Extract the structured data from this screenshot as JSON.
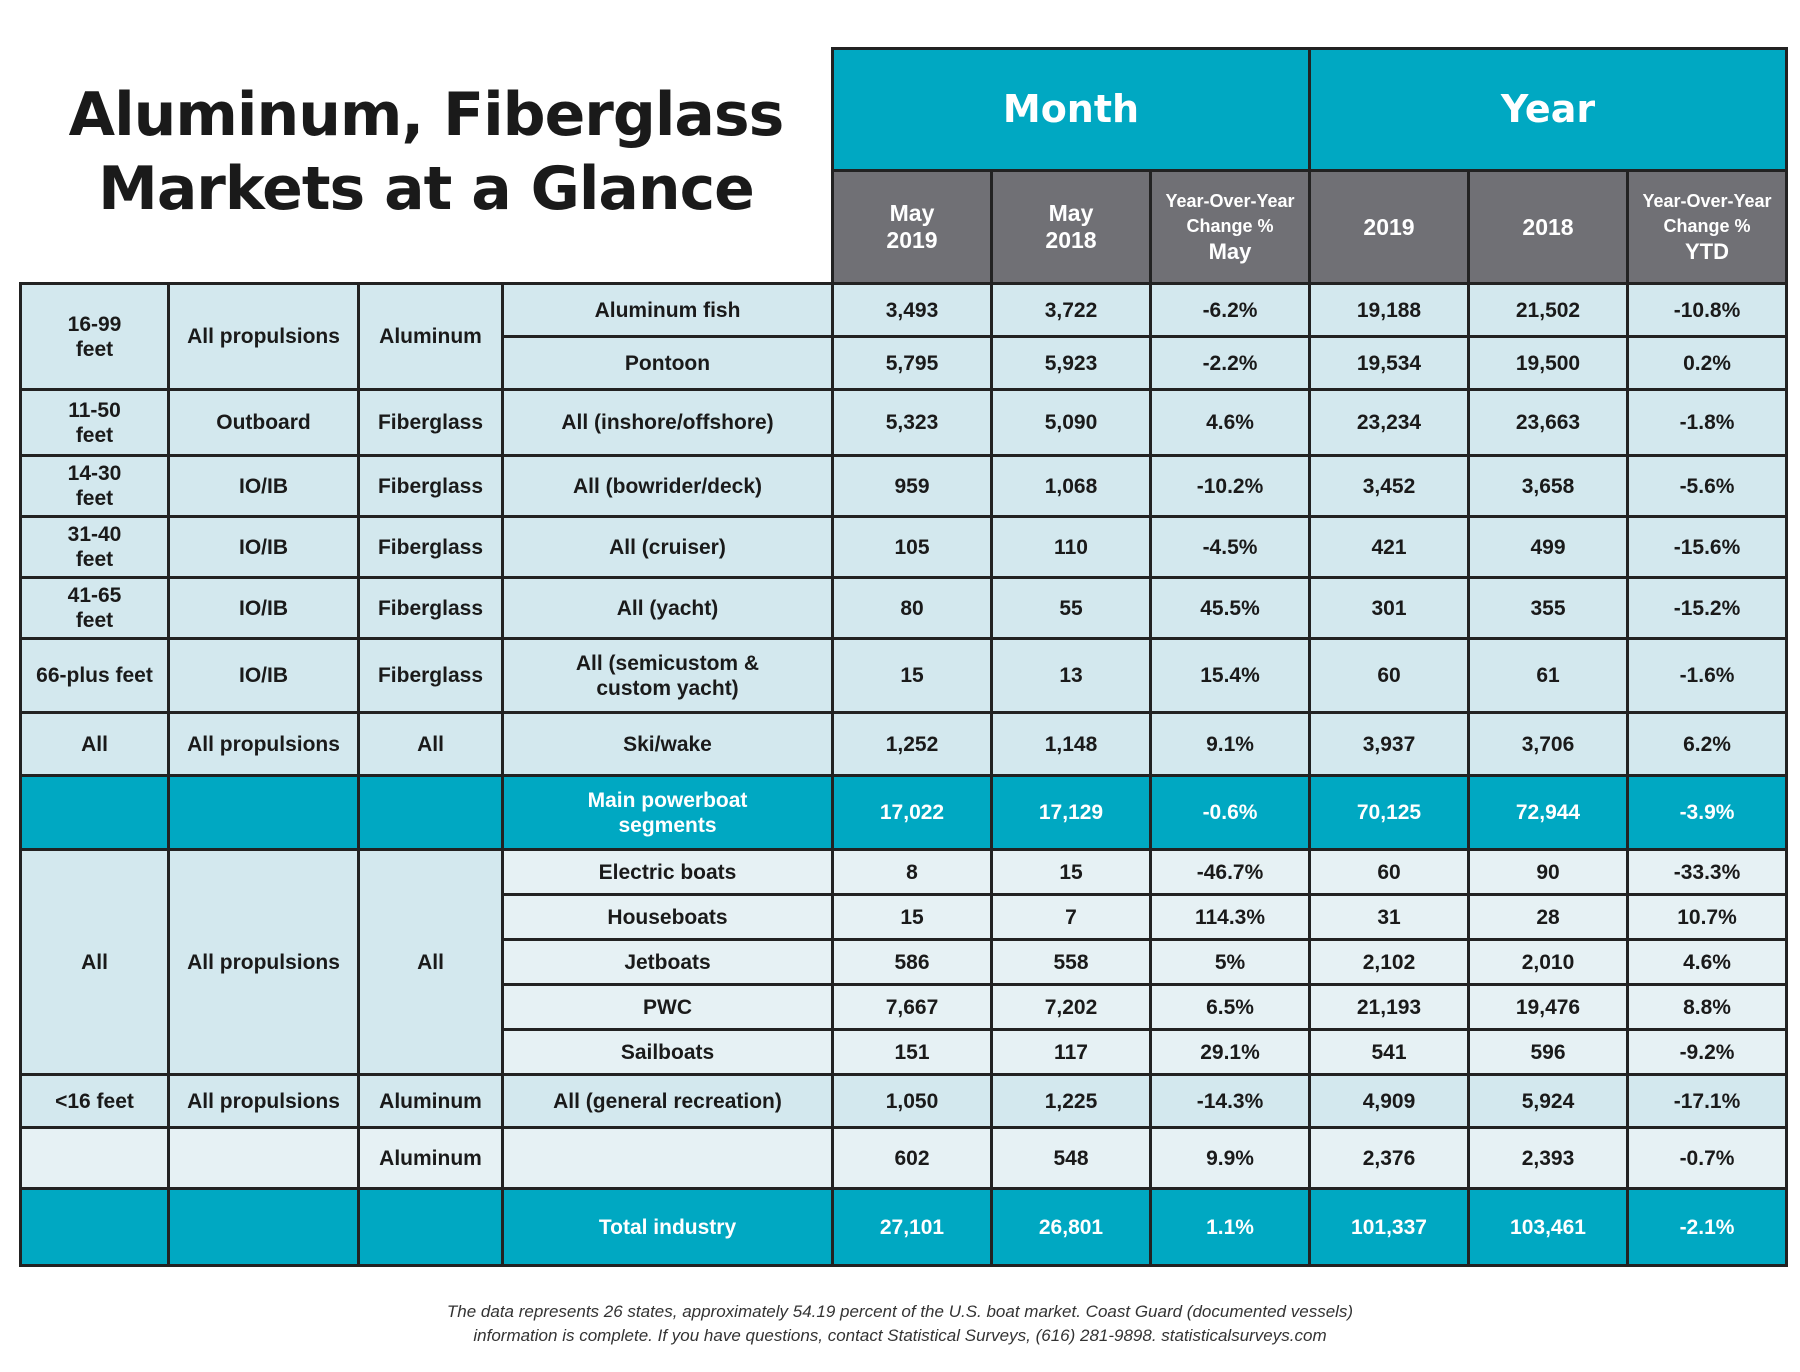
{
  "title": {
    "line1": "Aluminum, Fiberglass",
    "line2": "Markets at a Glance"
  },
  "header": {
    "month": "Month",
    "year": "Year",
    "columns": {
      "may2019": {
        "l1": "May",
        "l2": "2019"
      },
      "may2018": {
        "l1": "May",
        "l2": "2018"
      },
      "yoy_may": {
        "l1": "Year-Over-Year",
        "l2": "Change %",
        "l3": "May"
      },
      "y2019": "2019",
      "y2018": "2018",
      "yoy_ytd": {
        "l1": "Year-Over-Year",
        "l2": "Change %",
        "l3": "YTD"
      }
    }
  },
  "chart_data": {
    "type": "table",
    "title": "Aluminum, Fiberglass Markets at a Glance",
    "columns": [
      "May 2019",
      "May 2018",
      "Year-Over-Year Change % May",
      "2019",
      "2018",
      "Year-Over-Year Change % YTD"
    ],
    "rows": {
      "r1": {
        "size": {
          "l1": "16-99",
          "l2": "feet"
        },
        "propulsion": "All propulsions",
        "material": "Aluminum",
        "segment": "Aluminum fish",
        "values": [
          "3,493",
          "3,722",
          "-6.2%",
          "19,188",
          "21,502",
          "-10.8%"
        ]
      },
      "r2": {
        "segment": "Pontoon",
        "values": [
          "5,795",
          "5,923",
          "-2.2%",
          "19,534",
          "19,500",
          "0.2%"
        ]
      },
      "r3": {
        "size": {
          "l1": "11-50",
          "l2": "feet"
        },
        "propulsion": "Outboard",
        "material": "Fiberglass",
        "segment": "All (inshore/offshore)",
        "values": [
          "5,323",
          "5,090",
          "4.6%",
          "23,234",
          "23,663",
          "-1.8%"
        ]
      },
      "r4": {
        "size": {
          "l1": "14-30",
          "l2": "feet"
        },
        "propulsion": "IO/IB",
        "material": "Fiberglass",
        "segment": "All (bowrider/deck)",
        "values": [
          "959",
          "1,068",
          "-10.2%",
          "3,452",
          "3,658",
          "-5.6%"
        ]
      },
      "r5": {
        "size": {
          "l1": "31-40",
          "l2": "feet"
        },
        "propulsion": "IO/IB",
        "material": "Fiberglass",
        "segment": "All (cruiser)",
        "values": [
          "105",
          "110",
          "-4.5%",
          "421",
          "499",
          "-15.6%"
        ]
      },
      "r6": {
        "size": {
          "l1": "41-65",
          "l2": "feet"
        },
        "propulsion": "IO/IB",
        "material": "Fiberglass",
        "segment": "All (yacht)",
        "values": [
          "80",
          "55",
          "45.5%",
          "301",
          "355",
          "-15.2%"
        ]
      },
      "r7": {
        "size": "66-plus feet",
        "propulsion": "IO/IB",
        "material": "Fiberglass",
        "segment": {
          "l1": "All (semicustom &",
          "l2": "custom yacht)"
        },
        "values": [
          "15",
          "13",
          "15.4%",
          "60",
          "61",
          "-1.6%"
        ]
      },
      "r8": {
        "size": "All",
        "propulsion": "All propulsions",
        "material": "All",
        "segment": "Ski/wake",
        "values": [
          "1,252",
          "1,148",
          "9.1%",
          "3,937",
          "3,706",
          "6.2%"
        ]
      },
      "r9": {
        "segment": {
          "l1": "Main powerboat",
          "l2": "segments"
        },
        "values": [
          "17,022",
          "17,129",
          "-0.6%",
          "70,125",
          "72,944",
          "-3.9%"
        ]
      },
      "r10": {
        "size": "All",
        "propulsion": "All propulsions",
        "material": "All",
        "segment": "Electric boats",
        "values": [
          "8",
          "15",
          "-46.7%",
          "60",
          "90",
          "-33.3%"
        ]
      },
      "r11": {
        "segment": "Houseboats",
        "values": [
          "15",
          "7",
          "114.3%",
          "31",
          "28",
          "10.7%"
        ]
      },
      "r12": {
        "segment": "Jetboats",
        "values": [
          "586",
          "558",
          "5%",
          "2,102",
          "2,010",
          "4.6%"
        ]
      },
      "r13": {
        "segment": "PWC",
        "values": [
          "7,667",
          "7,202",
          "6.5%",
          "21,193",
          "19,476",
          "8.8%"
        ]
      },
      "r14": {
        "segment": "Sailboats",
        "values": [
          "151",
          "117",
          "29.1%",
          "541",
          "596",
          "-9.2%"
        ]
      },
      "r15": {
        "size": "<16 feet",
        "propulsion": "All propulsions",
        "material": "Aluminum",
        "segment": "All (general recreation)",
        "values": [
          "1,050",
          "1,225",
          "-14.3%",
          "4,909",
          "5,924",
          "-17.1%"
        ]
      },
      "r16": {
        "material": "Aluminum",
        "values": [
          "602",
          "548",
          "9.9%",
          "2,376",
          "2,393",
          "-0.7%"
        ]
      },
      "r17": {
        "segment": "Total industry",
        "values": [
          "27,101",
          "26,801",
          "1.1%",
          "101,337",
          "103,461",
          "-2.1%"
        ]
      }
    }
  },
  "footnote": {
    "line1": "The data represents 26 states, approximately 54.19 percent of the U.S. boat market. Coast Guard (documented vessels)",
    "line2": "information is complete. If you have questions, contact Statistical Surveys, (616) 281-9898. statisticalsurveys.com"
  },
  "colors": {
    "teal": "#00a8c2",
    "header_gray": "#707075",
    "row_bg": "#d3e8ee",
    "border": "#222222"
  }
}
